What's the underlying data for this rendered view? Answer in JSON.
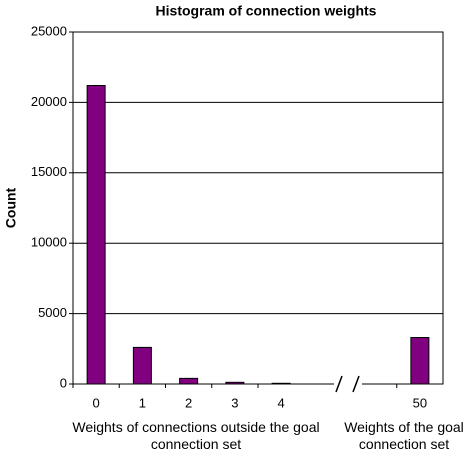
{
  "chart_data": {
    "type": "bar",
    "title": "Histogram of connection weights",
    "y_label": "Count",
    "x_label": "Weights of connections outside the goal connection set",
    "x_label_2": "Weights of the goal connection set",
    "categories": [
      "0",
      "1",
      "2",
      "3",
      "4",
      null,
      null,
      "50"
    ],
    "values": [
      21200,
      2600,
      400,
      120,
      50,
      null,
      null,
      3300
    ],
    "color": "#800080",
    "ylim": [
      0,
      25000
    ],
    "yticks": [
      0,
      5000,
      10000,
      15000,
      20000,
      25000
    ],
    "grid": true
  }
}
